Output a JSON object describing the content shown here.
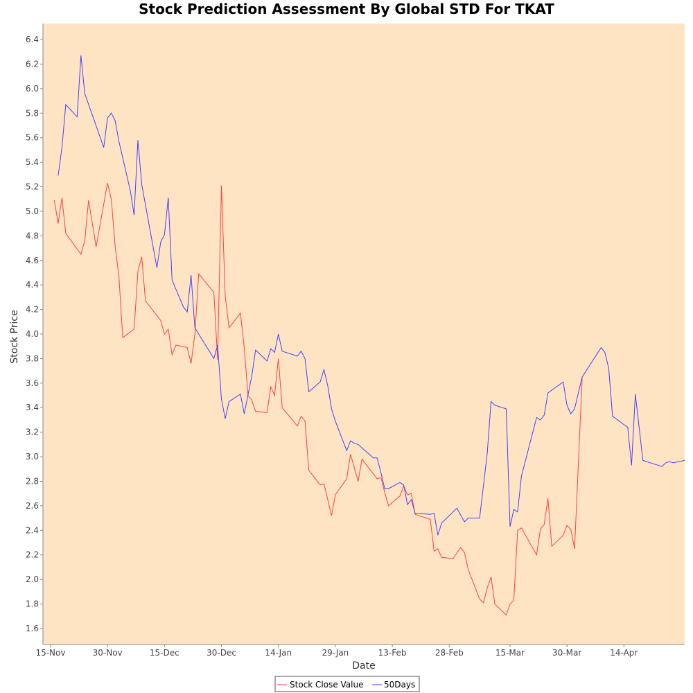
{
  "chart_data": {
    "type": "line",
    "title": "Stock Prediction Assessment By Global STD For TKAT",
    "xlabel": "Date",
    "ylabel": "Stock Price",
    "x_ticks": [
      "15-Nov",
      "30-Nov",
      "15-Dec",
      "30-Dec",
      "14-Jan",
      "29-Jan",
      "13-Feb",
      "28-Feb",
      "15-Mar",
      "30-Mar",
      "14-Apr"
    ],
    "y_ticks": [
      "1.6",
      "1.8",
      "2.0",
      "2.2",
      "2.4",
      "2.6",
      "2.8",
      "3.0",
      "3.2",
      "3.4",
      "3.6",
      "3.8",
      "4.0",
      "4.2",
      "4.4",
      "4.6",
      "4.8",
      "5.0",
      "5.2",
      "5.4",
      "5.6",
      "5.8",
      "6.0",
      "6.2",
      "6.4"
    ],
    "x_range": [
      "2015-11-13",
      "2016-04-30"
    ],
    "ylim": [
      1.47,
      6.53
    ],
    "grid": false,
    "background": "#ffe4c4",
    "legend_position": "bottom-center",
    "series": [
      {
        "name": "Stock Close Value",
        "color": "#ff4040",
        "points": [
          [
            "2015-11-16",
            5.09
          ],
          [
            "2015-11-17",
            4.9
          ],
          [
            "2015-11-18",
            5.11
          ],
          [
            "2015-11-19",
            4.82
          ],
          [
            "2015-11-23",
            4.65
          ],
          [
            "2015-11-24",
            4.76
          ],
          [
            "2015-11-25",
            5.09
          ],
          [
            "2015-11-27",
            4.71
          ],
          [
            "2015-11-30",
            5.23
          ],
          [
            "2015-12-01",
            5.1
          ],
          [
            "2015-12-02",
            4.72
          ],
          [
            "2015-12-03",
            4.47
          ],
          [
            "2015-12-04",
            3.97
          ],
          [
            "2015-12-07",
            4.04
          ],
          [
            "2015-12-08",
            4.51
          ],
          [
            "2015-12-09",
            4.63
          ],
          [
            "2015-12-10",
            4.27
          ],
          [
            "2015-12-14",
            4.11
          ],
          [
            "2015-12-15",
            4.0
          ],
          [
            "2015-12-16",
            4.04
          ],
          [
            "2015-12-17",
            3.83
          ],
          [
            "2015-12-18",
            3.91
          ],
          [
            "2015-12-21",
            3.89
          ],
          [
            "2015-12-22",
            3.76
          ],
          [
            "2015-12-23",
            4.0
          ],
          [
            "2015-12-24",
            4.49
          ],
          [
            "2015-12-28",
            4.34
          ],
          [
            "2015-12-29",
            3.79
          ],
          [
            "2015-12-30",
            5.21
          ],
          [
            "2015-12-31",
            4.31
          ],
          [
            "2016-01-01",
            4.05
          ],
          [
            "2016-01-04",
            4.17
          ],
          [
            "2016-01-05",
            3.89
          ],
          [
            "2016-01-06",
            3.5
          ],
          [
            "2016-01-07",
            3.46
          ],
          [
            "2016-01-08",
            3.37
          ],
          [
            "2016-01-11",
            3.36
          ],
          [
            "2016-01-12",
            3.57
          ],
          [
            "2016-01-13",
            3.5
          ],
          [
            "2016-01-14",
            3.8
          ],
          [
            "2016-01-15",
            3.4
          ],
          [
            "2016-01-19",
            3.25
          ],
          [
            "2016-01-20",
            3.33
          ],
          [
            "2016-01-21",
            3.29
          ],
          [
            "2016-01-22",
            2.89
          ],
          [
            "2016-01-25",
            2.77
          ],
          [
            "2016-01-26",
            2.78
          ],
          [
            "2016-01-28",
            2.52
          ],
          [
            "2016-01-29",
            2.69
          ],
          [
            "2016-02-01",
            2.82
          ],
          [
            "2016-02-02",
            3.02
          ],
          [
            "2016-02-04",
            2.8
          ],
          [
            "2016-02-05",
            2.98
          ],
          [
            "2016-02-09",
            2.82
          ],
          [
            "2016-02-10",
            2.83
          ],
          [
            "2016-02-11",
            2.71
          ],
          [
            "2016-02-12",
            2.6
          ],
          [
            "2016-02-15",
            2.68
          ],
          [
            "2016-02-16",
            2.76
          ],
          [
            "2016-02-17",
            2.69
          ],
          [
            "2016-02-18",
            2.7
          ],
          [
            "2016-02-19",
            2.53
          ],
          [
            "2016-02-23",
            2.49
          ],
          [
            "2016-02-24",
            2.23
          ],
          [
            "2016-02-25",
            2.25
          ],
          [
            "2016-02-26",
            2.18
          ],
          [
            "2016-02-29",
            2.17
          ],
          [
            "2016-03-02",
            2.26
          ],
          [
            "2016-03-03",
            2.22
          ],
          [
            "2016-03-04",
            2.08
          ],
          [
            "2016-03-07",
            1.84
          ],
          [
            "2016-03-08",
            1.81
          ],
          [
            "2016-03-09",
            1.93
          ],
          [
            "2016-03-10",
            2.02
          ],
          [
            "2016-03-11",
            1.8
          ],
          [
            "2016-03-14",
            1.71
          ],
          [
            "2016-03-15",
            1.8
          ],
          [
            "2016-03-16",
            1.83
          ],
          [
            "2016-03-17",
            2.4
          ],
          [
            "2016-03-18",
            2.42
          ],
          [
            "2016-03-22",
            2.2
          ],
          [
            "2016-03-23",
            2.41
          ],
          [
            "2016-03-24",
            2.45
          ],
          [
            "2016-03-25",
            2.66
          ],
          [
            "2016-03-26",
            2.27
          ],
          [
            "2016-03-29",
            2.36
          ],
          [
            "2016-03-30",
            2.44
          ],
          [
            "2016-03-31",
            2.41
          ],
          [
            "2016-04-01",
            2.25
          ],
          [
            "2016-04-03",
            3.64
          ]
        ]
      },
      {
        "name": "50Days",
        "color": "#4040ff",
        "points": [
          [
            "2015-11-17",
            5.29
          ],
          [
            "2015-11-18",
            5.52
          ],
          [
            "2015-11-19",
            5.87
          ],
          [
            "2015-11-22",
            5.77
          ],
          [
            "2015-11-23",
            6.27
          ],
          [
            "2015-11-24",
            5.96
          ],
          [
            "2015-11-29",
            5.52
          ],
          [
            "2015-11-30",
            5.76
          ],
          [
            "2015-12-01",
            5.8
          ],
          [
            "2015-12-02",
            5.74
          ],
          [
            "2015-12-03",
            5.57
          ],
          [
            "2015-12-06",
            5.17
          ],
          [
            "2015-12-07",
            4.97
          ],
          [
            "2015-12-08",
            5.58
          ],
          [
            "2015-12-09",
            5.22
          ],
          [
            "2015-12-13",
            4.54
          ],
          [
            "2015-12-14",
            4.75
          ],
          [
            "2015-12-15",
            4.81
          ],
          [
            "2015-12-16",
            5.11
          ],
          [
            "2015-12-17",
            4.44
          ],
          [
            "2015-12-20",
            4.22
          ],
          [
            "2015-12-21",
            4.18
          ],
          [
            "2015-12-22",
            4.48
          ],
          [
            "2015-12-23",
            4.05
          ],
          [
            "2015-12-28",
            3.8
          ],
          [
            "2015-12-29",
            3.91
          ],
          [
            "2015-12-30",
            3.47
          ],
          [
            "2015-12-31",
            3.31
          ],
          [
            "2016-01-01",
            3.45
          ],
          [
            "2016-01-04",
            3.51
          ],
          [
            "2016-01-05",
            3.35
          ],
          [
            "2016-01-07",
            3.66
          ],
          [
            "2016-01-08",
            3.87
          ],
          [
            "2016-01-11",
            3.78
          ],
          [
            "2016-01-12",
            3.88
          ],
          [
            "2016-01-13",
            3.85
          ],
          [
            "2016-01-14",
            4.0
          ],
          [
            "2016-01-15",
            3.86
          ],
          [
            "2016-01-19",
            3.82
          ],
          [
            "2016-01-20",
            3.86
          ],
          [
            "2016-01-21",
            3.8
          ],
          [
            "2016-01-22",
            3.53
          ],
          [
            "2016-01-25",
            3.61
          ],
          [
            "2016-01-26",
            3.71
          ],
          [
            "2016-01-27",
            3.58
          ],
          [
            "2016-01-28",
            3.39
          ],
          [
            "2016-01-29",
            3.29
          ],
          [
            "2016-02-01",
            3.05
          ],
          [
            "2016-02-02",
            3.13
          ],
          [
            "2016-02-03",
            3.11
          ],
          [
            "2016-02-04",
            3.1
          ],
          [
            "2016-02-08",
            2.99
          ],
          [
            "2016-02-09",
            2.99
          ],
          [
            "2016-02-10",
            2.87
          ],
          [
            "2016-02-11",
            2.74
          ],
          [
            "2016-02-12",
            2.74
          ],
          [
            "2016-02-15",
            2.79
          ],
          [
            "2016-02-16",
            2.77
          ],
          [
            "2016-02-17",
            2.61
          ],
          [
            "2016-02-18",
            2.65
          ],
          [
            "2016-02-19",
            2.54
          ],
          [
            "2016-02-23",
            2.53
          ],
          [
            "2016-02-24",
            2.54
          ],
          [
            "2016-02-25",
            2.36
          ],
          [
            "2016-02-26",
            2.46
          ],
          [
            "2016-03-01",
            2.58
          ],
          [
            "2016-03-03",
            2.47
          ],
          [
            "2016-03-04",
            2.5
          ],
          [
            "2016-03-07",
            2.5
          ],
          [
            "2016-03-09",
            3.03
          ],
          [
            "2016-03-10",
            3.45
          ],
          [
            "2016-03-11",
            3.42
          ],
          [
            "2016-03-14",
            3.39
          ],
          [
            "2016-03-15",
            2.43
          ],
          [
            "2016-03-16",
            2.57
          ],
          [
            "2016-03-17",
            2.55
          ],
          [
            "2016-03-18",
            2.84
          ],
          [
            "2016-03-22",
            3.32
          ],
          [
            "2016-03-23",
            3.3
          ],
          [
            "2016-03-24",
            3.34
          ],
          [
            "2016-03-25",
            3.52
          ],
          [
            "2016-03-29",
            3.61
          ],
          [
            "2016-03-30",
            3.42
          ],
          [
            "2016-03-31",
            3.35
          ],
          [
            "2016-04-01",
            3.39
          ],
          [
            "2016-04-03",
            3.65
          ],
          [
            "2016-04-08",
            3.89
          ],
          [
            "2016-04-09",
            3.85
          ],
          [
            "2016-04-10",
            3.72
          ],
          [
            "2016-04-11",
            3.33
          ],
          [
            "2016-04-15",
            3.24
          ],
          [
            "2016-04-16",
            2.93
          ],
          [
            "2016-04-17",
            3.51
          ],
          [
            "2016-04-19",
            2.97
          ],
          [
            "2016-04-24",
            2.92
          ],
          [
            "2016-04-25",
            2.95
          ],
          [
            "2016-04-26",
            2.96
          ],
          [
            "2016-04-27",
            2.95
          ],
          [
            "2016-04-30",
            2.97
          ]
        ]
      }
    ]
  }
}
